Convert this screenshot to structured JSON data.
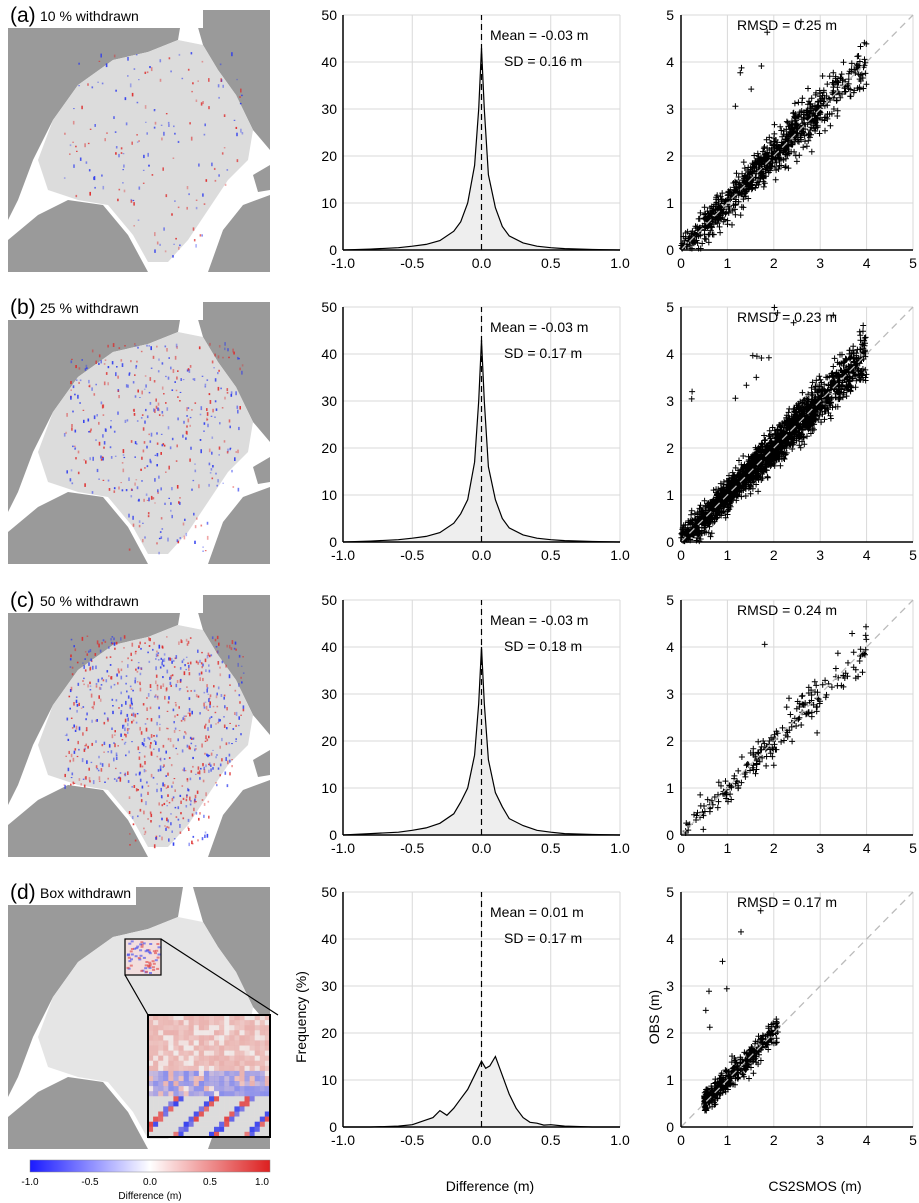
{
  "panels": [
    {
      "label": "(a)",
      "title": "10 % withdrawn",
      "mean": "Mean = -0.03 m",
      "sd": "SD = 0.16 m",
      "rmsd": "RMSD = 0.25 m"
    },
    {
      "label": "(b)",
      "title": "25 % withdrawn",
      "mean": "Mean = -0.03 m",
      "sd": "SD = 0.17 m",
      "rmsd": "RMSD = 0.23 m"
    },
    {
      "label": "(c)",
      "title": "50 % withdrawn",
      "mean": "Mean = -0.03 m",
      "sd": "SD = 0.18 m",
      "rmsd": "RMSD = 0.24 m"
    },
    {
      "label": "(d)",
      "title": "Box withdrawn",
      "mean": "Mean = 0.01 m",
      "sd": "SD = 0.17 m",
      "rmsd": "RMSD = 0.17 m"
    }
  ],
  "chart_data": [
    {
      "type": "area",
      "panel": "a-histogram",
      "x": [
        -1.0,
        -0.8,
        -0.6,
        -0.5,
        -0.4,
        -0.3,
        -0.2,
        -0.15,
        -0.1,
        -0.05,
        -0.02,
        0.0,
        0.02,
        0.05,
        0.1,
        0.15,
        0.2,
        0.3,
        0.4,
        0.5,
        0.6,
        0.8,
        1.0
      ],
      "y": [
        0,
        0.2,
        0.5,
        0.8,
        1.2,
        2,
        4,
        6,
        10,
        18,
        30,
        43,
        30,
        16,
        9,
        5,
        3,
        1.5,
        0.8,
        0.5,
        0.3,
        0.1,
        0
      ],
      "xlim": [
        -1.0,
        1.0
      ],
      "ylim": [
        0,
        50
      ],
      "xticks": [
        "-1.0",
        "-0.5",
        "0.0",
        "0.5",
        "1.0"
      ],
      "yticks": [
        "0",
        "10",
        "20",
        "30",
        "40",
        "50"
      ],
      "grid": true
    },
    {
      "type": "area",
      "panel": "b-histogram",
      "x": [
        -1.0,
        -0.8,
        -0.6,
        -0.5,
        -0.4,
        -0.3,
        -0.2,
        -0.15,
        -0.1,
        -0.05,
        -0.02,
        0.0,
        0.02,
        0.05,
        0.1,
        0.15,
        0.2,
        0.3,
        0.4,
        0.5,
        0.6,
        0.8,
        1.0
      ],
      "y": [
        0,
        0.2,
        0.5,
        0.8,
        1.2,
        2,
        4,
        6,
        9,
        17,
        30,
        43,
        30,
        16,
        9,
        5,
        3,
        1.5,
        0.8,
        0.5,
        0.3,
        0.1,
        0
      ],
      "xlim": [
        -1.0,
        1.0
      ],
      "ylim": [
        0,
        50
      ],
      "xticks": [
        "-1.0",
        "-0.5",
        "0.0",
        "0.5",
        "1.0"
      ],
      "yticks": [
        "0",
        "10",
        "20",
        "30",
        "40",
        "50"
      ],
      "grid": true
    },
    {
      "type": "area",
      "panel": "c-histogram",
      "x": [
        -1.0,
        -0.8,
        -0.6,
        -0.5,
        -0.4,
        -0.3,
        -0.2,
        -0.15,
        -0.1,
        -0.05,
        -0.02,
        0.0,
        0.02,
        0.05,
        0.1,
        0.15,
        0.2,
        0.3,
        0.4,
        0.5,
        0.6,
        0.8,
        1.0
      ],
      "y": [
        0,
        0.3,
        0.6,
        1.0,
        1.5,
        2.5,
        4.5,
        7,
        10,
        17,
        28,
        40,
        28,
        16,
        9,
        6,
        3.5,
        2,
        1,
        0.6,
        0.3,
        0.1,
        0
      ],
      "xlim": [
        -1.0,
        1.0
      ],
      "ylim": [
        0,
        50
      ],
      "xticks": [
        "-1.0",
        "-0.5",
        "0.0",
        "0.5",
        "1.0"
      ],
      "yticks": [
        "0",
        "10",
        "20",
        "30",
        "40",
        "50"
      ],
      "grid": true
    },
    {
      "type": "area",
      "panel": "d-histogram",
      "x": [
        -1.0,
        -0.8,
        -0.6,
        -0.5,
        -0.45,
        -0.4,
        -0.35,
        -0.3,
        -0.25,
        -0.2,
        -0.15,
        -0.1,
        -0.05,
        0.0,
        0.03,
        0.06,
        0.1,
        0.15,
        0.2,
        0.25,
        0.3,
        0.35,
        0.4,
        0.45,
        0.5,
        0.6,
        0.8,
        1.0
      ],
      "y": [
        0,
        0,
        0.2,
        0.5,
        1,
        1.5,
        2,
        3.5,
        2.5,
        4,
        6,
        8,
        11,
        14,
        12.5,
        13,
        15,
        11,
        7,
        4,
        2,
        1,
        0.8,
        0.4,
        0.5,
        0.2,
        0,
        0
      ],
      "xlim": [
        -1.0,
        1.0
      ],
      "ylim": [
        0,
        50
      ],
      "xticks": [
        "-1.0",
        "-0.5",
        "0.0",
        "0.5",
        "1.0"
      ],
      "yticks": [
        "0",
        "10",
        "20",
        "30",
        "40",
        "50"
      ],
      "ylabel": "Frequency (%)",
      "xlabel": "Difference (m)",
      "grid": true
    },
    {
      "type": "scatter",
      "panel": "a-scatter",
      "xlim": [
        0,
        5
      ],
      "ylim": [
        0,
        5
      ],
      "xticks": [
        "0",
        "1",
        "2",
        "3",
        "4",
        "5"
      ],
      "yticks": [
        "0",
        "1",
        "2",
        "3",
        "4",
        "5"
      ],
      "point_count": 900,
      "spread": 0.25,
      "xrange": [
        0,
        4.0
      ],
      "seed": 11,
      "grid": true
    },
    {
      "type": "scatter",
      "panel": "b-scatter",
      "xlim": [
        0,
        5
      ],
      "ylim": [
        0,
        5
      ],
      "xticks": [
        "0",
        "1",
        "2",
        "3",
        "4",
        "5"
      ],
      "yticks": [
        "0",
        "1",
        "2",
        "3",
        "4",
        "5"
      ],
      "point_count": 2000,
      "spread": 0.23,
      "xrange": [
        0,
        4.0
      ],
      "seed": 23,
      "grid": true
    },
    {
      "type": "scatter",
      "panel": "c-scatter",
      "xlim": [
        0,
        5
      ],
      "ylim": [
        0,
        5
      ],
      "xticks": [
        "0",
        "1",
        "2",
        "3",
        "4",
        "5"
      ],
      "yticks": [
        "0",
        "1",
        "2",
        "3",
        "4",
        "5"
      ],
      "point_count": 3500,
      "spread": 0.24,
      "xrange": [
        0,
        4.0
      ],
      "seed": 37,
      "grid": true
    },
    {
      "type": "scatter",
      "panel": "d-scatter",
      "xlim": [
        0,
        5
      ],
      "ylim": [
        0,
        5
      ],
      "xticks": [
        "0",
        "1",
        "2",
        "3",
        "4",
        "5"
      ],
      "yticks": [
        "0",
        "1",
        "2",
        "3",
        "4",
        "5"
      ],
      "point_count": 400,
      "spread": 0.17,
      "xrange": [
        0.5,
        2.1
      ],
      "seed": 51,
      "ylabel": "OBS (m)",
      "xlabel": "CS2SMOS (m)",
      "grid": true
    }
  ],
  "colorbar": {
    "ticks": [
      "-1.0",
      "-0.5",
      "0.0",
      "0.5",
      "1.0"
    ],
    "label": "Difference (m)",
    "colors": [
      "#1a1aff",
      "#ffffff",
      "#dd1f1f"
    ]
  },
  "colors": {
    "land": "#9a9a9a",
    "ice": "#dcdcdc",
    "hist_fill": "#eeeeee",
    "grid": "#d9d9d9",
    "one_to_one": "#bbbbbb"
  }
}
